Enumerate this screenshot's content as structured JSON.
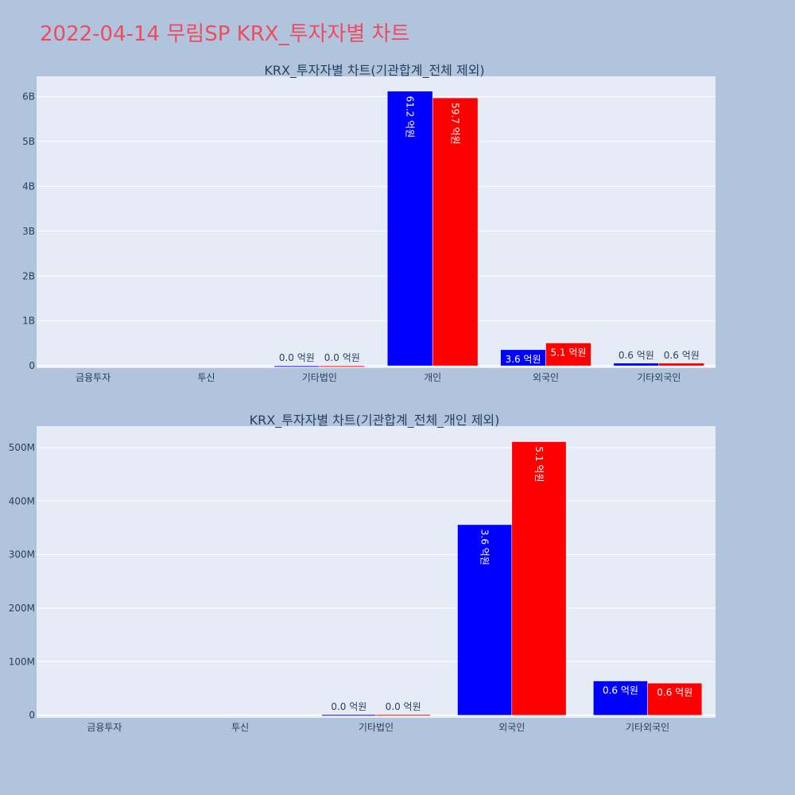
{
  "page": {
    "title": "2022-04-14 무림SP KRX_투자자별 차트",
    "title_color": "#ef4b5f",
    "background": "#b0c4de",
    "plot_background": "#e5ecf6"
  },
  "chart_data": [
    {
      "type": "bar",
      "title": "KRX_투자자별 차트(기관합계_전체 제외)",
      "categories": [
        "금융투자",
        "투신",
        "기타법인",
        "개인",
        "외국인",
        "기타외국인"
      ],
      "series": [
        {
          "color": "#0000ff",
          "values": [
            0,
            0,
            1000000,
            6120000000,
            360000000,
            60000000
          ],
          "labels": [
            "",
            "",
            "0.0 억원",
            "61.2 억원",
            "3.6 억원",
            "0.6 억원"
          ]
        },
        {
          "color": "#ff0000",
          "values": [
            0,
            0,
            1000000,
            5970000000,
            510000000,
            60000000
          ],
          "labels": [
            "",
            "",
            "0.0 억원",
            "59.7 억원",
            "5.1 억원",
            "0.6 억원"
          ]
        }
      ],
      "yticks": [
        0,
        1000000000,
        2000000000,
        3000000000,
        4000000000,
        5000000000,
        6000000000
      ],
      "ytick_labels": [
        "0",
        "1B",
        "2B",
        "3B",
        "4B",
        "5B",
        "6B"
      ],
      "ylim": [
        -50000000,
        6450000000
      ],
      "grid": true
    },
    {
      "type": "bar",
      "title": "KRX_투자자별 차트(기관합계_전체_개인 제외)",
      "categories": [
        "금융투자",
        "투신",
        "기타법인",
        "외국인",
        "기타외국인"
      ],
      "series": [
        {
          "color": "#0000ff",
          "values": [
            0,
            0,
            1000000,
            356000000,
            64000000
          ],
          "labels": [
            "",
            "",
            "0.0 억원",
            "3.6 억원",
            "0.6 억원"
          ]
        },
        {
          "color": "#ff0000",
          "values": [
            0,
            0,
            1000000,
            511000000,
            60000000
          ],
          "labels": [
            "",
            "",
            "0.0 억원",
            "5.1 억원",
            "0.6 억원"
          ]
        }
      ],
      "yticks": [
        0,
        100000000,
        200000000,
        300000000,
        400000000,
        500000000
      ],
      "ytick_labels": [
        "0",
        "100M",
        "200M",
        "300M",
        "400M",
        "500M"
      ],
      "ylim": [
        -5000000,
        540000000
      ],
      "grid": true
    }
  ]
}
